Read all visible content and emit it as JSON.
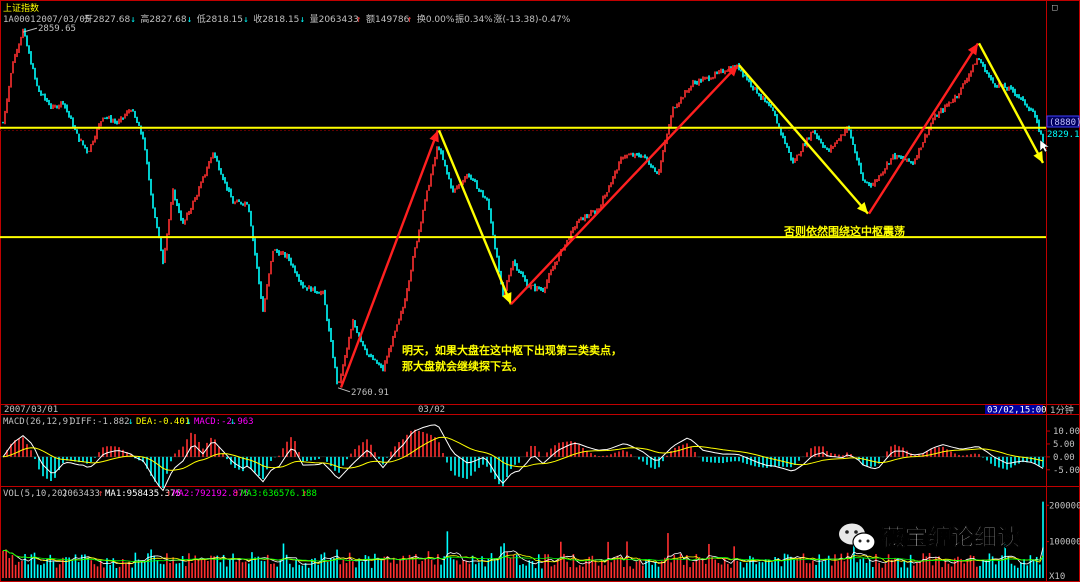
{
  "app": {
    "title": "上证指数",
    "code": "1A0001"
  },
  "header": {
    "date": "2007/03/05",
    "stats": [
      {
        "label": "开2827.68",
        "arrow": "↓",
        "color": "#00ffff"
      },
      {
        "label": "高2827.68",
        "arrow": "↓",
        "color": "#00ffff"
      },
      {
        "label": "低2818.15",
        "arrow": "↓",
        "color": "#00ffff"
      },
      {
        "label": "收2818.15",
        "arrow": "↓",
        "color": "#00ffff"
      },
      {
        "label": "量2063433",
        "arrow": "↑",
        "color": "#ff4040"
      },
      {
        "label": "额149786",
        "arrow": "↑",
        "color": "#ff4040"
      },
      {
        "label": "换0.00%",
        "arrow": "",
        "color": "#c0c0c0"
      },
      {
        "label": "振0.34%",
        "arrow": "",
        "color": "#c0c0c0"
      },
      {
        "label": "涨(-13.38)-0.47%",
        "arrow": "",
        "color": "#00ffff"
      }
    ]
  },
  "price_panel": {
    "high_label": "2859.65",
    "low_label": "2760.91",
    "last_price_box": "(8880)",
    "last_price": "2829.11",
    "annotation_1_line1": "明天，如果大盘在这中枢下出现第三类卖点，",
    "annotation_1_line2": "那大盘就会继续探下去。",
    "annotation_2": "否则依然围绕这中枢震荡"
  },
  "time_axis": {
    "left": "2007/03/01",
    "mid": "03/02",
    "right_box": "03/02,15:00",
    "period": "1分钟"
  },
  "macd_panel": {
    "title": "MACD(26,12,9)",
    "diff": "DIFF:-1.882",
    "diff_arrow": "↓",
    "dea": "DEA:-0.401",
    "dea_arrow": "↓",
    "macd": "MACD:-2.963",
    "macd_arrow": "↓",
    "ticks": [
      "10.00",
      "5.00",
      "0.00",
      "-5.00"
    ]
  },
  "vol_panel": {
    "title": "VOL(5,10,20)",
    "value": "2063433",
    "value_arrow": "↑",
    "ma1": "MA1:958435.375",
    "ma1_arrow": "↑",
    "ma2": "MA2:792192.875",
    "ma2_arrow": "↑",
    "ma3": "MA3:636576.188",
    "ma3_arrow": "↑",
    "ticks": [
      "200000",
      "100000"
    ],
    "unit": "X10"
  },
  "watermark": {
    "text": "薇宝缠论细读"
  },
  "colors": {
    "up": "#ff3030",
    "down": "#00ffff",
    "hline": "#ffff00",
    "arrow_red": "#ff2020",
    "arrow_yellow": "#ffff00",
    "frame": "#c00000",
    "annotation": "#ffff00",
    "diff_line": "#ffffff",
    "dea_line": "#ffff00",
    "ma1": "#ffffff",
    "ma2": "#ffff00",
    "ma3": "#ff00ff",
    "ma4": "#00ff00"
  },
  "chart_data": {
    "type": "line",
    "title": "上证指数",
    "x_range": [
      "2007/03/01",
      "03/02,15:00"
    ],
    "y_high": 2859.65,
    "y_low": 2760.91,
    "last": 2829.11,
    "ylim": [
      2757,
      2863
    ],
    "zhongshu_levels": [
      2832.7,
      2802.5
    ],
    "price_path": [
      [
        0.0,
        2834.0
      ],
      [
        0.01,
        2851.0
      ],
      [
        0.02,
        2859.65
      ],
      [
        0.035,
        2843.0
      ],
      [
        0.05,
        2838.0
      ],
      [
        0.06,
        2840.0
      ],
      [
        0.075,
        2830.0
      ],
      [
        0.085,
        2826.0
      ],
      [
        0.1,
        2836.0
      ],
      [
        0.115,
        2834.0
      ],
      [
        0.128,
        2838.0
      ],
      [
        0.14,
        2830.0
      ],
      [
        0.15,
        2811.0
      ],
      [
        0.16,
        2796.0
      ],
      [
        0.17,
        2815.0
      ],
      [
        0.18,
        2806.0
      ],
      [
        0.195,
        2815.0
      ],
      [
        0.21,
        2826.0
      ],
      [
        0.23,
        2812.0
      ],
      [
        0.245,
        2812.0
      ],
      [
        0.26,
        2782.0
      ],
      [
        0.27,
        2799.0
      ],
      [
        0.285,
        2797.0
      ],
      [
        0.3,
        2789.0
      ],
      [
        0.32,
        2787.0
      ],
      [
        0.335,
        2761.0
      ],
      [
        0.35,
        2779.0
      ],
      [
        0.365,
        2770.0
      ],
      [
        0.38,
        2766.0
      ],
      [
        0.4,
        2783.0
      ],
      [
        0.42,
        2810.0
      ],
      [
        0.435,
        2828.0
      ],
      [
        0.45,
        2815.0
      ],
      [
        0.465,
        2820.0
      ],
      [
        0.485,
        2812.0
      ],
      [
        0.5,
        2786.0
      ],
      [
        0.51,
        2796.0
      ],
      [
        0.525,
        2789.0
      ],
      [
        0.54,
        2788.0
      ],
      [
        0.555,
        2797.0
      ],
      [
        0.575,
        2807.0
      ],
      [
        0.595,
        2810.0
      ],
      [
        0.62,
        2825.0
      ],
      [
        0.64,
        2825.0
      ],
      [
        0.655,
        2820.0
      ],
      [
        0.67,
        2838.0
      ],
      [
        0.69,
        2845.0
      ],
      [
        0.71,
        2847.0
      ],
      [
        0.725,
        2849.0
      ],
      [
        0.735,
        2849.6
      ],
      [
        0.75,
        2844.0
      ],
      [
        0.77,
        2837.0
      ],
      [
        0.79,
        2823.0
      ],
      [
        0.81,
        2832.0
      ],
      [
        0.825,
        2826.0
      ],
      [
        0.845,
        2833.0
      ],
      [
        0.86,
        2818.0
      ],
      [
        0.87,
        2817.0
      ],
      [
        0.89,
        2825.0
      ],
      [
        0.91,
        2823.0
      ],
      [
        0.93,
        2835.0
      ],
      [
        0.955,
        2842.0
      ],
      [
        0.975,
        2852.0
      ],
      [
        0.99,
        2845.0
      ],
      [
        1.01,
        2843.0
      ],
      [
        1.03,
        2837.0
      ],
      [
        1.04,
        2829.11
      ]
    ],
    "annotation_arrows": [
      {
        "color": "red",
        "from": [
          0.338,
          2761.0
        ],
        "to": [
          0.435,
          2832.0
        ]
      },
      {
        "color": "yellow",
        "from": [
          0.436,
          2832.0
        ],
        "to": [
          0.508,
          2784.0
        ]
      },
      {
        "color": "red",
        "from": [
          0.508,
          2784.0
        ],
        "to": [
          0.735,
          2850.0
        ]
      },
      {
        "color": "yellow",
        "from": [
          0.736,
          2850.0
        ],
        "to": [
          0.865,
          2809.0
        ]
      },
      {
        "color": "red",
        "from": [
          0.866,
          2809.0
        ],
        "to": [
          0.975,
          2856.0
        ]
      },
      {
        "color": "yellow",
        "from": [
          0.976,
          2856.0
        ],
        "to": [
          1.04,
          2823.0
        ]
      }
    ],
    "macd_ylim": [
      -10.5,
      13.5
    ],
    "macd_ticks": [
      10,
      5,
      0,
      -5
    ],
    "vol_ylim": [
      0,
      220000
    ],
    "vol_ticks": [
      200000,
      100000
    ],
    "vol_last": 2063433
  }
}
